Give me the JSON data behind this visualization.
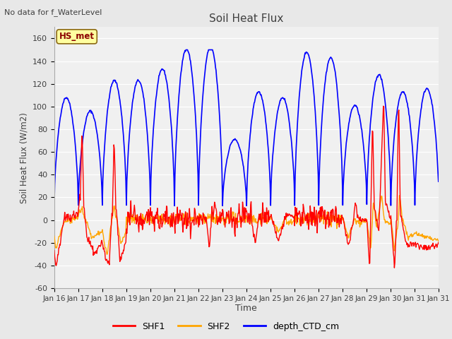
{
  "title": "Soil Heat Flux",
  "xlabel": "Time",
  "ylabel": "Soil Heat Flux (W/m2)",
  "fig_facecolor": "#e8e8e8",
  "ax_facecolor": "#f0f0f0",
  "ylim": [
    -60,
    170
  ],
  "yticks": [
    -60,
    -40,
    -20,
    0,
    20,
    40,
    60,
    80,
    100,
    120,
    140,
    160
  ],
  "xtick_labels": [
    "Jan 16",
    "Jan 17",
    "Jan 18",
    "Jan 19",
    "Jan 20",
    "Jan 21",
    "Jan 22",
    "Jan 23",
    "Jan 24",
    "Jan 25",
    "Jan 26",
    "Jan 27",
    "Jan 28",
    "Jan 29",
    "Jan 30",
    "Jan 31",
    "Jan 31"
  ],
  "note_text": "No data for f_WaterLevel",
  "annotation_text": "HS_met",
  "series_colors": {
    "SHF1": "#ff0000",
    "SHF2": "#ffa500",
    "depth_CTD_cm": "#0000ff"
  },
  "legend_labels": [
    "SHF1",
    "SHF2",
    "depth_CTD_cm"
  ],
  "day_amplitudes_blue": [
    95,
    83,
    110,
    110,
    120,
    138,
    140,
    58,
    100,
    95,
    135,
    130,
    88,
    115,
    100,
    103
  ],
  "night_min_blue": 13
}
